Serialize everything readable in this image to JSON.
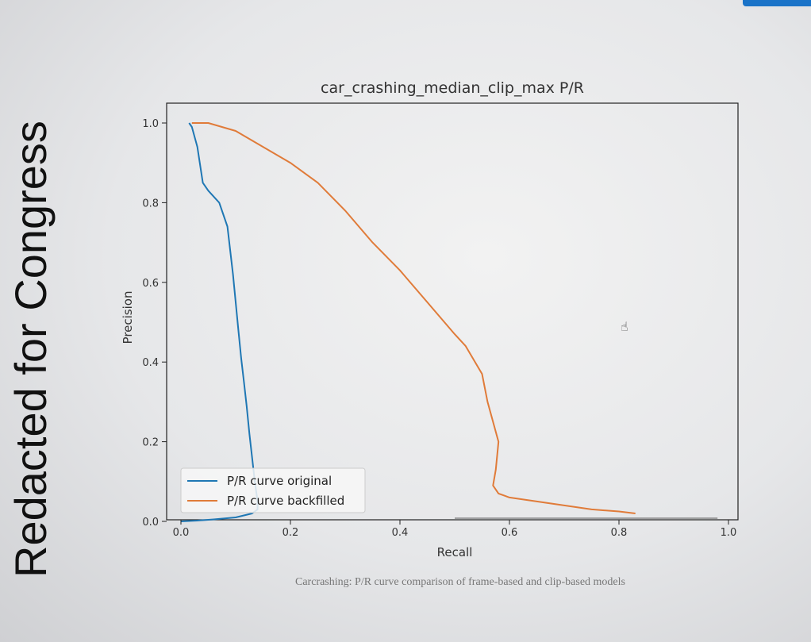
{
  "overlay": {
    "text": "Redacted for Congress"
  },
  "caption": "Carcrashing: P/R curve comparison of frame-based and clip-based models",
  "cursor": {
    "icon": "hand-pointer-icon"
  },
  "colors": {
    "accent": "#1a73c8",
    "series_original": "#1f77b4",
    "series_backfilled": "#e07b39"
  },
  "chart_data": {
    "type": "line",
    "title": "car_crashing_median_clip_max P/R",
    "xlabel": "Recall",
    "ylabel": "Precision",
    "xlim": [
      0.0,
      1.0
    ],
    "ylim": [
      0.0,
      1.05
    ],
    "xticks": [
      "0.0",
      "0.2",
      "0.4",
      "0.6",
      "0.8",
      "1.0"
    ],
    "yticks": [
      "0.0",
      "0.2",
      "0.4",
      "0.6",
      "0.8",
      "1.0"
    ],
    "grid": false,
    "legend_position": "lower-left",
    "series": [
      {
        "name": "P/R curve original",
        "color": "#1f77b4",
        "x": [
          0.015,
          0.02,
          0.03,
          0.04,
          0.05,
          0.07,
          0.085,
          0.09,
          0.095,
          0.1,
          0.105,
          0.11,
          0.115,
          0.12,
          0.125,
          0.13,
          0.135,
          0.14,
          0.14,
          0.13,
          0.1,
          0.06,
          0.03,
          0.0
        ],
        "y": [
          1.0,
          0.99,
          0.94,
          0.85,
          0.83,
          0.8,
          0.74,
          0.68,
          0.62,
          0.55,
          0.48,
          0.41,
          0.35,
          0.29,
          0.22,
          0.16,
          0.1,
          0.05,
          0.03,
          0.02,
          0.01,
          0.005,
          0.002,
          0.0
        ]
      },
      {
        "name": "P/R curve backfilled",
        "color": "#e07b39",
        "x": [
          0.02,
          0.05,
          0.1,
          0.15,
          0.2,
          0.25,
          0.3,
          0.35,
          0.4,
          0.45,
          0.5,
          0.52,
          0.55,
          0.56,
          0.58,
          0.575,
          0.57,
          0.58,
          0.6,
          0.65,
          0.7,
          0.75,
          0.8,
          0.83
        ],
        "y": [
          1.0,
          1.0,
          0.98,
          0.94,
          0.9,
          0.85,
          0.78,
          0.7,
          0.63,
          0.55,
          0.47,
          0.44,
          0.37,
          0.3,
          0.2,
          0.13,
          0.09,
          0.07,
          0.06,
          0.05,
          0.04,
          0.03,
          0.025,
          0.02
        ]
      }
    ]
  }
}
